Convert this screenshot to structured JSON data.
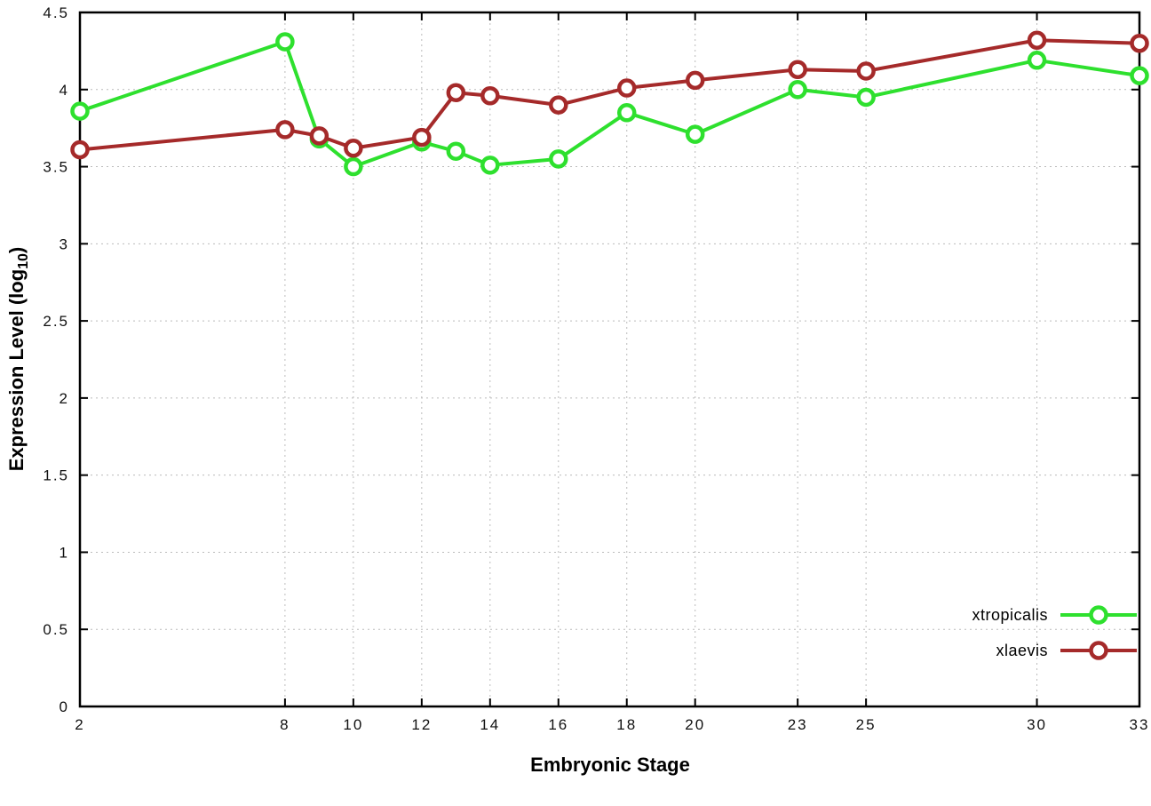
{
  "chart_data": {
    "type": "line",
    "title": "",
    "xlabel": "Embryonic Stage",
    "ylabel": "Expression Level (log10)",
    "ylabel_parts": {
      "main": "Expression Level (log",
      "sub": "10",
      "end": ")"
    },
    "xlim": [
      2,
      33
    ],
    "ylim": [
      0,
      4.5
    ],
    "x_ticks": [
      2,
      8,
      10,
      12,
      14,
      16,
      18,
      20,
      23,
      25,
      30,
      33
    ],
    "y_ticks": [
      0,
      0.5,
      1,
      1.5,
      2,
      2.5,
      3,
      3.5,
      4,
      4.5
    ],
    "grid": true,
    "grid_color": "#bbbbbb",
    "border_color": "#000000",
    "legend_position": "bottom-right",
    "x": [
      2,
      8,
      9,
      10,
      12,
      13,
      14,
      16,
      18,
      20,
      23,
      25,
      30,
      33
    ],
    "series": [
      {
        "name": "xtropicalis",
        "color": "#2ee02e",
        "values": [
          3.86,
          4.31,
          3.68,
          3.5,
          3.66,
          3.6,
          3.51,
          3.55,
          3.85,
          3.71,
          4.0,
          3.95,
          4.19,
          4.09
        ]
      },
      {
        "name": "xlaevis",
        "color": "#a52a2a",
        "values": [
          3.61,
          3.74,
          3.7,
          3.62,
          3.69,
          3.98,
          3.96,
          3.9,
          4.01,
          4.06,
          4.13,
          4.12,
          4.32,
          4.3
        ]
      }
    ]
  }
}
